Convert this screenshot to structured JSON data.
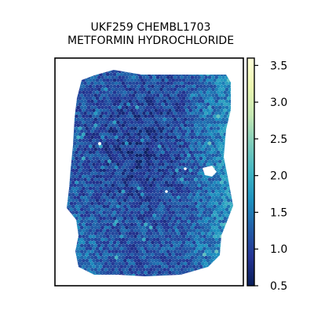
{
  "chart_data": {
    "type": "heatmap",
    "title_lines": [
      "UKF259 CHEMBL1703",
      "METFORMIN HYDROCHLORIDE"
    ],
    "xlabel": "",
    "ylabel": "",
    "grid": false,
    "colormap": "YlGnBu",
    "colorbar": {
      "position": "right",
      "range": [
        0.5,
        3.6
      ],
      "ticks": [
        0.5,
        1.0,
        1.5,
        2.0,
        2.5,
        3.0,
        3.5
      ],
      "tick_labels": [
        "0.5",
        "1.0",
        "1.5",
        "2.0",
        "2.5",
        "3.0",
        "3.5"
      ],
      "colors": [
        "#081d58",
        "#253494",
        "#225ea8",
        "#1d91c0",
        "#41b6c4",
        "#7fcdbb",
        "#c7e9b4",
        "#edf8b1",
        "#ffffd9"
      ]
    },
    "values_summary": {
      "typical_range": [
        0.8,
        1.6
      ],
      "max_observed": 2.3,
      "high_region": "right edge of tissue"
    }
  }
}
